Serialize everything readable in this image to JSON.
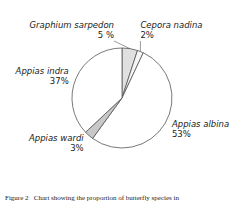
{
  "chart_data": {
    "type": "pie",
    "categories": [
      "Graphium sarpedon",
      "Cepora nadina",
      "Appias albina",
      "Appias wardi",
      "Appias indra"
    ],
    "values": [
      5,
      2,
      53,
      3,
      37
    ],
    "value_labels": [
      "5 %",
      "2%",
      "53%",
      "3%",
      "37%"
    ],
    "colors": [
      "#e0e0e0",
      "#f5f5f5",
      "#ffffff",
      "#c8c8c8",
      "#ffffff"
    ],
    "annotations": [
      "Figure 2   Chart showing the proportion of butterfly species in"
    ]
  }
}
